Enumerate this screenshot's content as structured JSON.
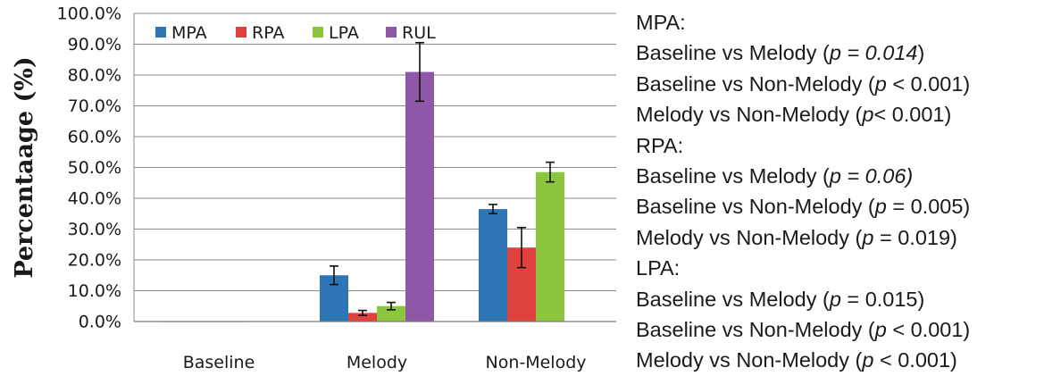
{
  "chart_data": {
    "type": "bar",
    "ylabel": "Percentaage (%)",
    "ylim": [
      0,
      100
    ],
    "ytick_labels": [
      "0.0%",
      "10.0%",
      "20.0%",
      "30.0%",
      "40.0%",
      "50.0%",
      "60.0%",
      "70.0%",
      "80.0%",
      "90.0%",
      "100.0%"
    ],
    "ytick_values": [
      0,
      10,
      20,
      30,
      40,
      50,
      60,
      70,
      80,
      90,
      100
    ],
    "grid": true,
    "legend_position": "top-left",
    "categories": [
      "Baseline",
      "Melody",
      "Non-Melody"
    ],
    "series": [
      {
        "name": "MPA",
        "color": "#2e75b6",
        "values": [
          0,
          15,
          36.5
        ],
        "errors": [
          0,
          3,
          1.5
        ]
      },
      {
        "name": "RPA",
        "color": "#e0423d",
        "values": [
          0,
          2.8,
          24
        ],
        "errors": [
          0,
          0.8,
          6.5
        ]
      },
      {
        "name": "LPA",
        "color": "#8cc63f",
        "values": [
          0,
          5,
          48.5
        ],
        "errors": [
          0,
          1.2,
          3.2
        ]
      },
      {
        "name": "RUL",
        "color": "#8e57a8",
        "values": [
          null,
          81,
          null
        ],
        "errors": [
          null,
          9.5,
          null
        ]
      }
    ]
  },
  "notes": [
    {
      "pre": "MPA:",
      "p": "",
      "post": ""
    },
    {
      "pre": "Baseline vs Melody (",
      "p": "p = 0.014",
      "post": ")"
    },
    {
      "pre": "Baseline vs Non-Melody  (",
      "p": "p",
      "post": " < 0.001)"
    },
    {
      "pre": "Melody vs Non-Melody  (",
      "p": "p",
      "post": "< 0.001)"
    },
    {
      "pre": "RPA:",
      "p": "",
      "post": ""
    },
    {
      "pre": "Baseline vs Melody (",
      "p": "p = 0.06)",
      "post": ""
    },
    {
      "pre": "Baseline  vs Non-Melody  (",
      "p": "p",
      "post": " = 0.005)"
    },
    {
      "pre": "Melody vs Non-Melody  (",
      "p": "p",
      "post": " = 0.019)"
    },
    {
      "pre": "LPA:",
      "p": "",
      "post": ""
    },
    {
      "pre": "Baseline  vs Melody (",
      "p": "p",
      "post": " = 0.015)"
    },
    {
      "pre": "Baseline  vs Non-Melody  (",
      "p": "p",
      "post": " < 0.001)"
    },
    {
      "pre": "Melody vs Non-Melody  (",
      "p": "p",
      "post": " < 0.001)"
    }
  ]
}
